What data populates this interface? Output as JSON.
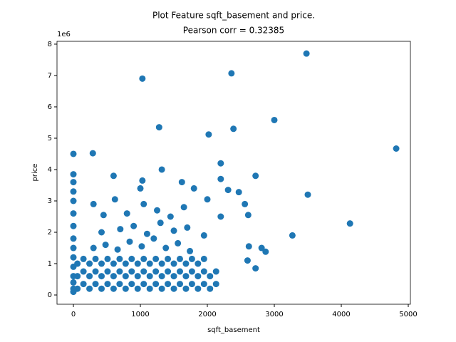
{
  "chart_data": {
    "type": "scatter",
    "title": "Plot Feature sqft_basement and price.",
    "subtitle": "Pearson corr = 0.32385",
    "x_label": "sqft_basement",
    "y_label": "price",
    "y_offset_label": "1e6",
    "color": "#1f77b4",
    "xlim": [
      -245,
      5032
    ],
    "xticks": [
      0,
      1000,
      2000,
      3000,
      4000,
      5000
    ],
    "ylim": [
      -0.295,
      8.09
    ],
    "yticks": [
      0,
      1,
      2,
      3,
      4,
      5,
      6,
      7,
      8
    ],
    "x": [
      60,
      150,
      240,
      330,
      420,
      510,
      600,
      690,
      780,
      870,
      960,
      1050,
      1140,
      1230,
      1320,
      1410,
      1500,
      1590,
      1680,
      1770,
      1860,
      1950,
      2040,
      2130,
      60,
      150,
      240,
      330,
      420,
      510,
      600,
      690,
      780,
      870,
      960,
      1050,
      1140,
      1230,
      1320,
      1410,
      1500,
      1590,
      1680,
      1770,
      1860,
      1950,
      2040,
      2130,
      60,
      150,
      240,
      330,
      420,
      510,
      600,
      690,
      780,
      870,
      960,
      1050,
      1140,
      1230,
      1320,
      1410,
      1500,
      1590,
      1680,
      1770,
      1860,
      1950,
      300,
      480,
      660,
      840,
      1020,
      1200,
      1380,
      1560,
      1740,
      420,
      700,
      900,
      1100,
      1300,
      1500,
      1700,
      1950,
      450,
      800,
      1050,
      1250,
      1450,
      1650,
      2200,
      1030,
      2360,
      3480,
      1280,
      2390,
      2020,
      3000,
      4820,
      0,
      290,
      3500,
      4130,
      3270,
      2720,
      600,
      1320,
      2200,
      1030,
      1620,
      2200,
      2310,
      2470,
      2610,
      2560,
      2870,
      2810,
      2720,
      2600,
      2620,
      300,
      620,
      1000,
      1800,
      2000,
      0,
      0,
      0,
      0,
      0,
      0,
      0,
      0,
      0,
      0,
      0,
      0,
      0,
      0
    ],
    "y": [
      0.2,
      0.35,
      0.2,
      0.35,
      0.2,
      0.35,
      0.2,
      0.35,
      0.2,
      0.35,
      0.2,
      0.35,
      0.2,
      0.35,
      0.2,
      0.35,
      0.2,
      0.35,
      0.2,
      0.35,
      0.2,
      0.35,
      0.2,
      0.35,
      0.6,
      0.75,
      0.6,
      0.75,
      0.6,
      0.75,
      0.6,
      0.75,
      0.6,
      0.75,
      0.6,
      0.75,
      0.6,
      0.75,
      0.6,
      0.75,
      0.6,
      0.75,
      0.6,
      0.75,
      0.6,
      0.75,
      0.6,
      0.75,
      1.0,
      1.15,
      1.0,
      1.15,
      1.0,
      1.15,
      1.0,
      1.15,
      1.0,
      1.15,
      1.0,
      1.15,
      1.0,
      1.15,
      1.0,
      1.15,
      1.0,
      1.15,
      1.0,
      1.15,
      1.0,
      1.15,
      1.5,
      1.6,
      1.45,
      1.7,
      1.55,
      1.8,
      1.5,
      1.65,
      1.4,
      2.0,
      2.1,
      2.2,
      1.95,
      2.3,
      2.05,
      2.15,
      1.9,
      2.55,
      2.6,
      2.9,
      2.7,
      2.5,
      2.8,
      2.5,
      6.9,
      7.07,
      7.7,
      5.35,
      5.3,
      5.12,
      5.58,
      4.67,
      4.5,
      4.52,
      3.2,
      2.28,
      1.9,
      3.8,
      3.8,
      4.0,
      4.2,
      3.65,
      3.6,
      3.7,
      3.35,
      3.28,
      2.55,
      2.9,
      1.38,
      1.5,
      0.85,
      1.1,
      1.55,
      2.9,
      3.05,
      3.4,
      3.4,
      3.05,
      3.85,
      3.6,
      3.3,
      3.0,
      2.6,
      2.2,
      1.8,
      1.5,
      1.2,
      0.9,
      0.6,
      0.4,
      0.2,
      0.1
    ]
  }
}
